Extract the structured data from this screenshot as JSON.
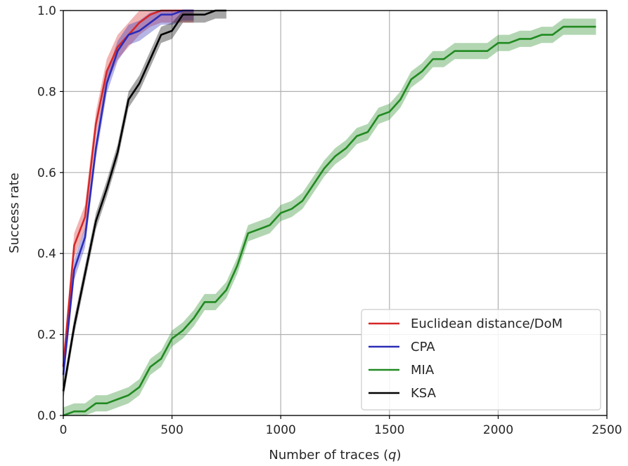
{
  "chart_data": {
    "type": "line",
    "title": "",
    "xlabel": "Number of traces (",
    "xlabel_var": "q",
    "xlabel_end": ")",
    "ylabel": "Success rate",
    "xlim": [
      0,
      2500
    ],
    "ylim": [
      0.0,
      1.0
    ],
    "xticks": [
      "0",
      "500",
      "1000",
      "1500",
      "2000",
      "2500"
    ],
    "yticks": [
      "0.0",
      "0.2",
      "0.4",
      "0.6",
      "0.8",
      "1.0"
    ],
    "grid": true,
    "legend_position": "lower-right",
    "series": [
      {
        "name": "Euclidean distance/DoM",
        "color": "#d62728",
        "band": 0.03,
        "x": [
          0,
          50,
          100,
          150,
          200,
          250,
          300,
          350,
          400,
          450,
          500,
          550,
          600
        ],
        "y": [
          0.12,
          0.42,
          0.49,
          0.72,
          0.85,
          0.91,
          0.94,
          0.97,
          0.99,
          1.0,
          1.0,
          1.0,
          1.0
        ]
      },
      {
        "name": "CPA",
        "color": "#2c2cb8",
        "band": 0.025,
        "x": [
          0,
          50,
          100,
          150,
          200,
          250,
          300,
          350,
          400,
          450,
          500,
          550,
          600
        ],
        "y": [
          0.1,
          0.36,
          0.44,
          0.66,
          0.82,
          0.9,
          0.94,
          0.95,
          0.97,
          0.99,
          0.99,
          1.0,
          1.0
        ]
      },
      {
        "name": "MIA",
        "color": "#218a21",
        "band": 0.02,
        "x": [
          0,
          50,
          100,
          150,
          200,
          250,
          300,
          350,
          400,
          450,
          500,
          550,
          600,
          650,
          700,
          750,
          800,
          850,
          900,
          950,
          1000,
          1050,
          1100,
          1150,
          1200,
          1250,
          1300,
          1350,
          1400,
          1450,
          1500,
          1550,
          1600,
          1650,
          1700,
          1750,
          1800,
          1850,
          1900,
          1950,
          2000,
          2050,
          2100,
          2150,
          2200,
          2250,
          2300,
          2350,
          2400,
          2450
        ],
        "y": [
          0.0,
          0.01,
          0.01,
          0.03,
          0.03,
          0.04,
          0.05,
          0.07,
          0.12,
          0.14,
          0.19,
          0.21,
          0.24,
          0.28,
          0.28,
          0.31,
          0.37,
          0.45,
          0.46,
          0.47,
          0.5,
          0.51,
          0.53,
          0.57,
          0.61,
          0.64,
          0.66,
          0.69,
          0.7,
          0.74,
          0.75,
          0.78,
          0.83,
          0.85,
          0.88,
          0.88,
          0.9,
          0.9,
          0.9,
          0.9,
          0.92,
          0.92,
          0.93,
          0.93,
          0.94,
          0.94,
          0.96,
          0.96,
          0.96,
          0.96
        ]
      },
      {
        "name": "KSA",
        "color": "#000000",
        "band": 0.02,
        "x": [
          0,
          50,
          100,
          150,
          200,
          250,
          300,
          350,
          400,
          450,
          500,
          550,
          600,
          650,
          700,
          750
        ],
        "y": [
          0.06,
          0.22,
          0.35,
          0.48,
          0.56,
          0.65,
          0.78,
          0.82,
          0.88,
          0.94,
          0.95,
          0.99,
          0.99,
          0.99,
          1.0,
          1.0
        ]
      }
    ]
  }
}
